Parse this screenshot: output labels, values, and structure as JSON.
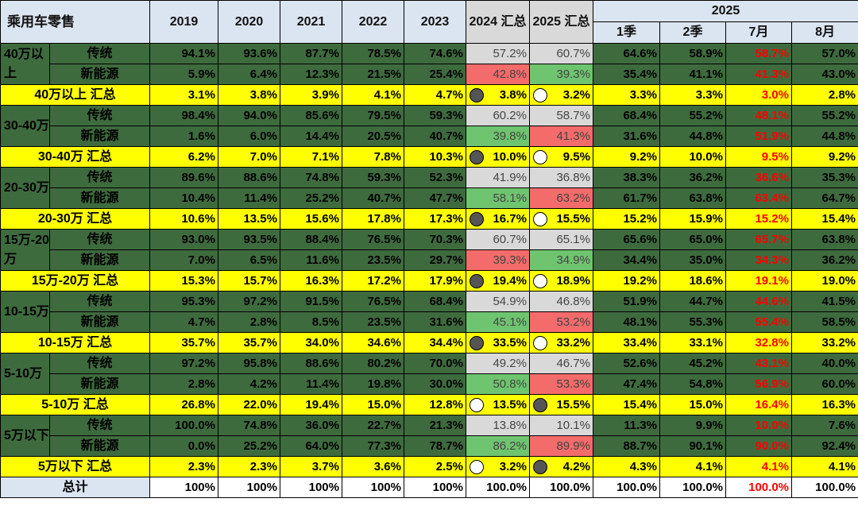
{
  "chart_data": {
    "type": "table",
    "title": "乘用车零售",
    "columns": [
      "2019",
      "2020",
      "2021",
      "2022",
      "2023",
      "2024 汇总",
      "2025 汇总"
    ],
    "group_2025": "2025",
    "sub_columns_2025": [
      "1季",
      "2季",
      "7月",
      "8月"
    ],
    "highlight_color": "#ff0000",
    "colors": {
      "dark_green": "#3e6b3e",
      "yellow": "#ffff00",
      "gray": "#d9d9d9",
      "pink": "#f36b6b",
      "light_green": "#6fc46f",
      "header": "#dbe5f1"
    },
    "groups": [
      {
        "label": "40万以上",
        "rows": [
          {
            "label": "传统",
            "values": [
              "94.1%",
              "93.6%",
              "87.7%",
              "78.5%",
              "74.6%",
              "57.2%",
              "60.7%",
              "64.6%",
              "58.9%",
              "58.7%",
              "57.0%"
            ],
            "fill2024": "gray",
            "fill2025": "gray"
          },
          {
            "label": "新能源",
            "values": [
              "5.9%",
              "6.4%",
              "12.3%",
              "21.5%",
              "25.4%",
              "42.8%",
              "39.3%",
              "35.4%",
              "41.1%",
              "41.3%",
              "43.0%"
            ],
            "fill2024": "pink",
            "fill2025": "lgreen"
          }
        ],
        "summary": {
          "label": "40万以上 汇总",
          "values": [
            "3.1%",
            "3.8%",
            "3.9%",
            "4.1%",
            "4.7%",
            "3.8%",
            "3.2%",
            "3.3%",
            "3.3%",
            "3.0%",
            "2.8%"
          ],
          "dot2024": "dark",
          "dot2025": "light"
        }
      },
      {
        "label": "30-40万",
        "rows": [
          {
            "label": "传统",
            "values": [
              "98.4%",
              "94.0%",
              "85.6%",
              "79.5%",
              "59.3%",
              "60.2%",
              "58.7%",
              "68.4%",
              "55.2%",
              "48.1%",
              "55.2%"
            ],
            "fill2024": "gray",
            "fill2025": "gray"
          },
          {
            "label": "新能源",
            "values": [
              "1.6%",
              "6.0%",
              "14.4%",
              "20.5%",
              "40.7%",
              "39.8%",
              "41.3%",
              "31.6%",
              "44.8%",
              "51.9%",
              "44.8%"
            ],
            "fill2024": "lgreen",
            "fill2025": "pink"
          }
        ],
        "summary": {
          "label": "30-40万 汇总",
          "values": [
            "6.2%",
            "7.0%",
            "7.1%",
            "7.8%",
            "10.3%",
            "10.0%",
            "9.5%",
            "9.2%",
            "10.0%",
            "9.5%",
            "9.2%"
          ],
          "dot2024": "dark",
          "dot2025": "light"
        }
      },
      {
        "label": "20-30万",
        "rows": [
          {
            "label": "传统",
            "values": [
              "89.6%",
              "88.6%",
              "74.8%",
              "59.3%",
              "52.3%",
              "41.9%",
              "36.8%",
              "38.3%",
              "36.2%",
              "36.6%",
              "35.3%"
            ],
            "fill2024": "gray",
            "fill2025": "gray"
          },
          {
            "label": "新能源",
            "values": [
              "10.4%",
              "11.4%",
              "25.2%",
              "40.7%",
              "47.7%",
              "58.1%",
              "63.2%",
              "61.7%",
              "63.8%",
              "63.4%",
              "64.7%"
            ],
            "fill2024": "lgreen",
            "fill2025": "pink"
          }
        ],
        "summary": {
          "label": "20-30万 汇总",
          "values": [
            "10.6%",
            "13.5%",
            "15.6%",
            "17.8%",
            "17.3%",
            "16.7%",
            "15.5%",
            "15.2%",
            "15.9%",
            "15.2%",
            "15.4%"
          ],
          "dot2024": "dark",
          "dot2025": "light"
        }
      },
      {
        "label": "15万-20万",
        "rows": [
          {
            "label": "传统",
            "values": [
              "93.0%",
              "93.5%",
              "88.4%",
              "76.5%",
              "70.3%",
              "60.7%",
              "65.1%",
              "65.6%",
              "65.0%",
              "65.7%",
              "63.8%"
            ],
            "fill2024": "gray",
            "fill2025": "gray"
          },
          {
            "label": "新能源",
            "values": [
              "7.0%",
              "6.5%",
              "11.6%",
              "23.5%",
              "29.7%",
              "39.3%",
              "34.9%",
              "34.4%",
              "35.0%",
              "34.3%",
              "36.2%"
            ],
            "fill2024": "pink",
            "fill2025": "lgreen"
          }
        ],
        "summary": {
          "label": "15万-20万 汇总",
          "values": [
            "15.3%",
            "15.7%",
            "16.3%",
            "17.2%",
            "17.9%",
            "19.4%",
            "18.9%",
            "19.2%",
            "18.6%",
            "19.1%",
            "19.0%"
          ],
          "dot2024": "dark",
          "dot2025": "light"
        }
      },
      {
        "label": "10-15万",
        "rows": [
          {
            "label": "传统",
            "values": [
              "95.3%",
              "97.2%",
              "91.5%",
              "76.5%",
              "68.4%",
              "54.9%",
              "46.8%",
              "51.9%",
              "44.7%",
              "44.6%",
              "41.5%"
            ],
            "fill2024": "gray",
            "fill2025": "gray"
          },
          {
            "label": "新能源",
            "values": [
              "4.7%",
              "2.8%",
              "8.5%",
              "23.5%",
              "31.6%",
              "45.1%",
              "53.2%",
              "48.1%",
              "55.3%",
              "55.4%",
              "58.5%"
            ],
            "fill2024": "lgreen",
            "fill2025": "pink"
          }
        ],
        "summary": {
          "label": "10-15万 汇总",
          "values": [
            "35.7%",
            "35.7%",
            "34.0%",
            "34.6%",
            "34.4%",
            "33.5%",
            "33.2%",
            "33.4%",
            "33.1%",
            "32.8%",
            "33.2%"
          ],
          "dot2024": "dark",
          "dot2025": "light"
        }
      },
      {
        "label": "5-10万",
        "rows": [
          {
            "label": "传统",
            "values": [
              "97.2%",
              "95.8%",
              "88.6%",
              "80.2%",
              "70.0%",
              "49.2%",
              "46.7%",
              "52.6%",
              "45.2%",
              "43.1%",
              "40.0%"
            ],
            "fill2024": "gray",
            "fill2025": "gray"
          },
          {
            "label": "新能源",
            "values": [
              "2.8%",
              "4.2%",
              "11.4%",
              "19.8%",
              "30.0%",
              "50.8%",
              "53.3%",
              "47.4%",
              "54.8%",
              "56.9%",
              "60.0%"
            ],
            "fill2024": "lgreen",
            "fill2025": "pink"
          }
        ],
        "summary": {
          "label": "5-10万 汇总",
          "values": [
            "26.8%",
            "22.0%",
            "19.4%",
            "15.0%",
            "12.8%",
            "13.5%",
            "15.5%",
            "15.4%",
            "15.0%",
            "16.4%",
            "16.3%"
          ],
          "dot2024": "light",
          "dot2025": "dark"
        }
      },
      {
        "label": "5万以下",
        "rows": [
          {
            "label": "传统",
            "values": [
              "100.0%",
              "74.8%",
              "36.0%",
              "22.7%",
              "21.3%",
              "13.8%",
              "10.1%",
              "11.3%",
              "9.9%",
              "10.0%",
              "7.6%"
            ],
            "fill2024": "gray",
            "fill2025": "gray"
          },
          {
            "label": "新能源",
            "values": [
              "0.0%",
              "25.2%",
              "64.0%",
              "77.3%",
              "78.7%",
              "86.2%",
              "89.9%",
              "88.7%",
              "90.1%",
              "90.0%",
              "92.4%"
            ],
            "fill2024": "lgreen",
            "fill2025": "pink"
          }
        ],
        "summary": {
          "label": "5万以下 汇总",
          "values": [
            "2.3%",
            "2.3%",
            "3.7%",
            "3.6%",
            "2.5%",
            "3.2%",
            "4.2%",
            "4.3%",
            "4.1%",
            "4.1%",
            "4.1%"
          ],
          "dot2024": "light",
          "dot2025": "dark"
        }
      }
    ],
    "total": {
      "label": "总计",
      "values": [
        "100%",
        "100%",
        "100%",
        "100%",
        "100%",
        "100.0%",
        "100.0%",
        "100.0%",
        "100.0%",
        "100.0%",
        "100.0%"
      ]
    }
  }
}
